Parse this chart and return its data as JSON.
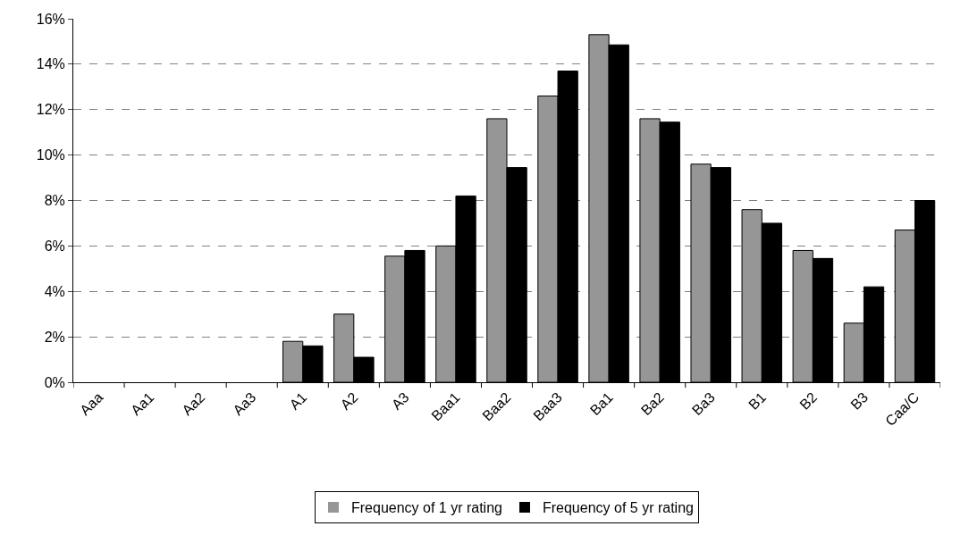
{
  "chart_data": {
    "type": "bar",
    "categories": [
      "Aaa",
      "Aa1",
      "Aa2",
      "Aa3",
      "A1",
      "A2",
      "A3",
      "Baa1",
      "Baa2",
      "Baa3",
      "Ba1",
      "Ba2",
      "Ba3",
      "B1",
      "B2",
      "B3",
      "Caa/C"
    ],
    "series": [
      {
        "name": "Frequency of 1 yr rating",
        "color": "#969696",
        "values": [
          0,
          0,
          0,
          0,
          1.8,
          3.0,
          5.55,
          6.0,
          11.6,
          12.6,
          15.3,
          11.6,
          9.6,
          7.6,
          5.8,
          2.6,
          6.7
        ]
      },
      {
        "name": "Frequency of 5 yr rating",
        "color": "#000000",
        "values": [
          0,
          0,
          0,
          0,
          1.6,
          1.1,
          5.8,
          8.2,
          9.45,
          13.7,
          14.85,
          11.45,
          9.45,
          7.0,
          5.45,
          4.2,
          8.0
        ]
      }
    ],
    "ylim": [
      0,
      16
    ],
    "yticks": [
      {
        "value": 0,
        "label": "0%"
      },
      {
        "value": 2,
        "label": "2%"
      },
      {
        "value": 4,
        "label": "4%"
      },
      {
        "value": 6,
        "label": "6%"
      },
      {
        "value": 8,
        "label": "8%"
      },
      {
        "value": 10,
        "label": "10%"
      },
      {
        "value": 12,
        "label": "12%"
      },
      {
        "value": 14,
        "label": "14%"
      },
      {
        "value": 16,
        "label": "16%"
      }
    ],
    "grid": "y",
    "legend": "bottom"
  }
}
